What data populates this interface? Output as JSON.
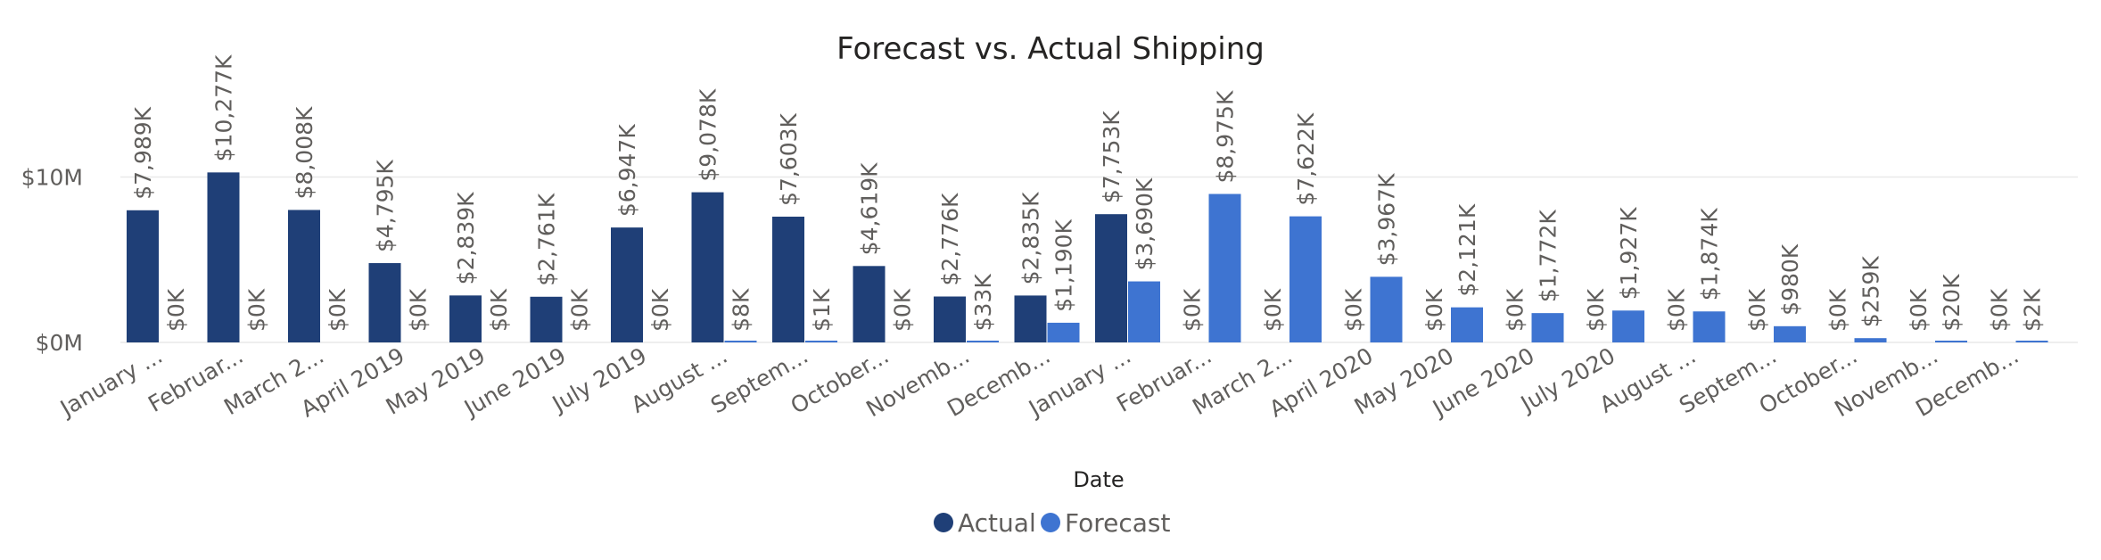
{
  "chart_data": {
    "type": "bar",
    "title": "Forecast vs. Actual Shipping",
    "xlabel": "Date",
    "ylabel": "",
    "ylim": [
      0,
      12000
    ],
    "yticks": [
      {
        "value": 0,
        "label": "$0M"
      },
      {
        "value": 10000,
        "label": "$10M"
      }
    ],
    "grid": true,
    "legend_position": "bottom-center",
    "categories": [
      "January ...",
      "Februar...",
      "March 2...",
      "April 2019",
      "May 2019",
      "June 2019",
      "July 2019",
      "August ...",
      "Septem...",
      "October...",
      "Novemb...",
      "Decemb...",
      "January ...",
      "Februar...",
      "March 2...",
      "April 2020",
      "May 2020",
      "June 2020",
      "July 2020",
      "August ...",
      "Septem...",
      "October...",
      "Novemb...",
      "Decemb..."
    ],
    "series": [
      {
        "name": "Actual",
        "color": "#1f3f77",
        "values": [
          7989,
          10277,
          8008,
          4795,
          2839,
          2761,
          6947,
          9078,
          7603,
          4619,
          2776,
          2835,
          7753,
          0,
          0,
          0,
          0,
          0,
          0,
          0,
          0,
          0,
          0,
          0
        ],
        "labels": [
          "$7,989K",
          "$10,277K",
          "$8,008K",
          "$4,795K",
          "$2,839K",
          "$2,761K",
          "$6,947K",
          "$9,078K",
          "$7,603K",
          "$4,619K",
          "$2,776K",
          "$2,835K",
          "$7,753K",
          "$0K",
          "$0K",
          "$0K",
          "$0K",
          "$0K",
          "$0K",
          "$0K",
          "$0K",
          "$0K",
          "$0K",
          "$0K"
        ]
      },
      {
        "name": "Forecast",
        "color": "#3e74d1",
        "values": [
          0,
          0,
          0,
          0,
          0,
          0,
          0,
          8,
          1,
          0,
          33,
          1190,
          3690,
          8975,
          7622,
          3967,
          2121,
          1772,
          1927,
          1874,
          980,
          259,
          20,
          2
        ],
        "labels": [
          "$0K",
          "$0K",
          "$0K",
          "$0K",
          "$0K",
          "$0K",
          "$0K",
          "$8K",
          "$1K",
          "$0K",
          "$33K",
          "$1,190K",
          "$3,690K",
          "$8,975K",
          "$7,622K",
          "$3,967K",
          "$2,121K",
          "$1,772K",
          "$1,927K",
          "$1,874K",
          "$980K",
          "$259K",
          "$20K",
          "$2K"
        ]
      }
    ]
  }
}
